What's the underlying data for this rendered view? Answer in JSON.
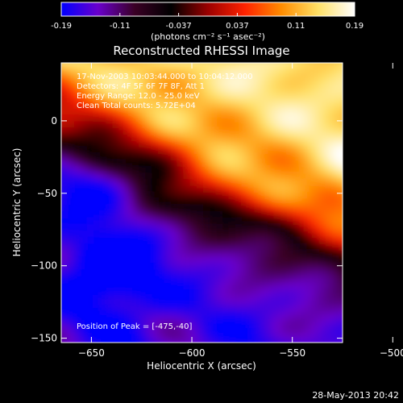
{
  "chart_data": {
    "type": "heatmap",
    "title": "Reconstructed RHESSI Image",
    "colorbar": {
      "min": -0.19,
      "max": 0.19,
      "ticks": [
        "-0.19",
        "-0.11",
        "-0.037",
        "0.037",
        "0.11",
        "0.19"
      ],
      "unit_label": "(photons cm⁻² s⁻¹ asec⁻²)",
      "colors": [
        "#0000ff",
        "#6a00cc",
        "#3a0025",
        "#000000",
        "#9b0000",
        "#ff2200",
        "#ff8c00",
        "#ffe066",
        "#ffffff"
      ]
    },
    "xlabel": "Heliocentric X (arcsec)",
    "ylabel": "Heliocentric Y (arcsec)",
    "xlim": [
      -665,
      -525
    ],
    "ylim": [
      -153,
      40
    ],
    "xticks": [
      -650,
      -600,
      -550,
      -500
    ],
    "yticks": [
      -150,
      -100,
      -50,
      0
    ],
    "annotations": [
      "17-Nov-2003 10:03:44.000 to 10:04:12.000",
      "Detectors: 4F 5F 6F 7F 8F, Att 1",
      "Energy Range: 12.0 - 25.0 keV",
      "Clean     Total counts: 5.72E+04"
    ],
    "peak_label": "Position of Peak = [-475,-40]",
    "peak": {
      "x": -475,
      "y": -40
    },
    "timestamp": "28-May-2013 20:42"
  }
}
